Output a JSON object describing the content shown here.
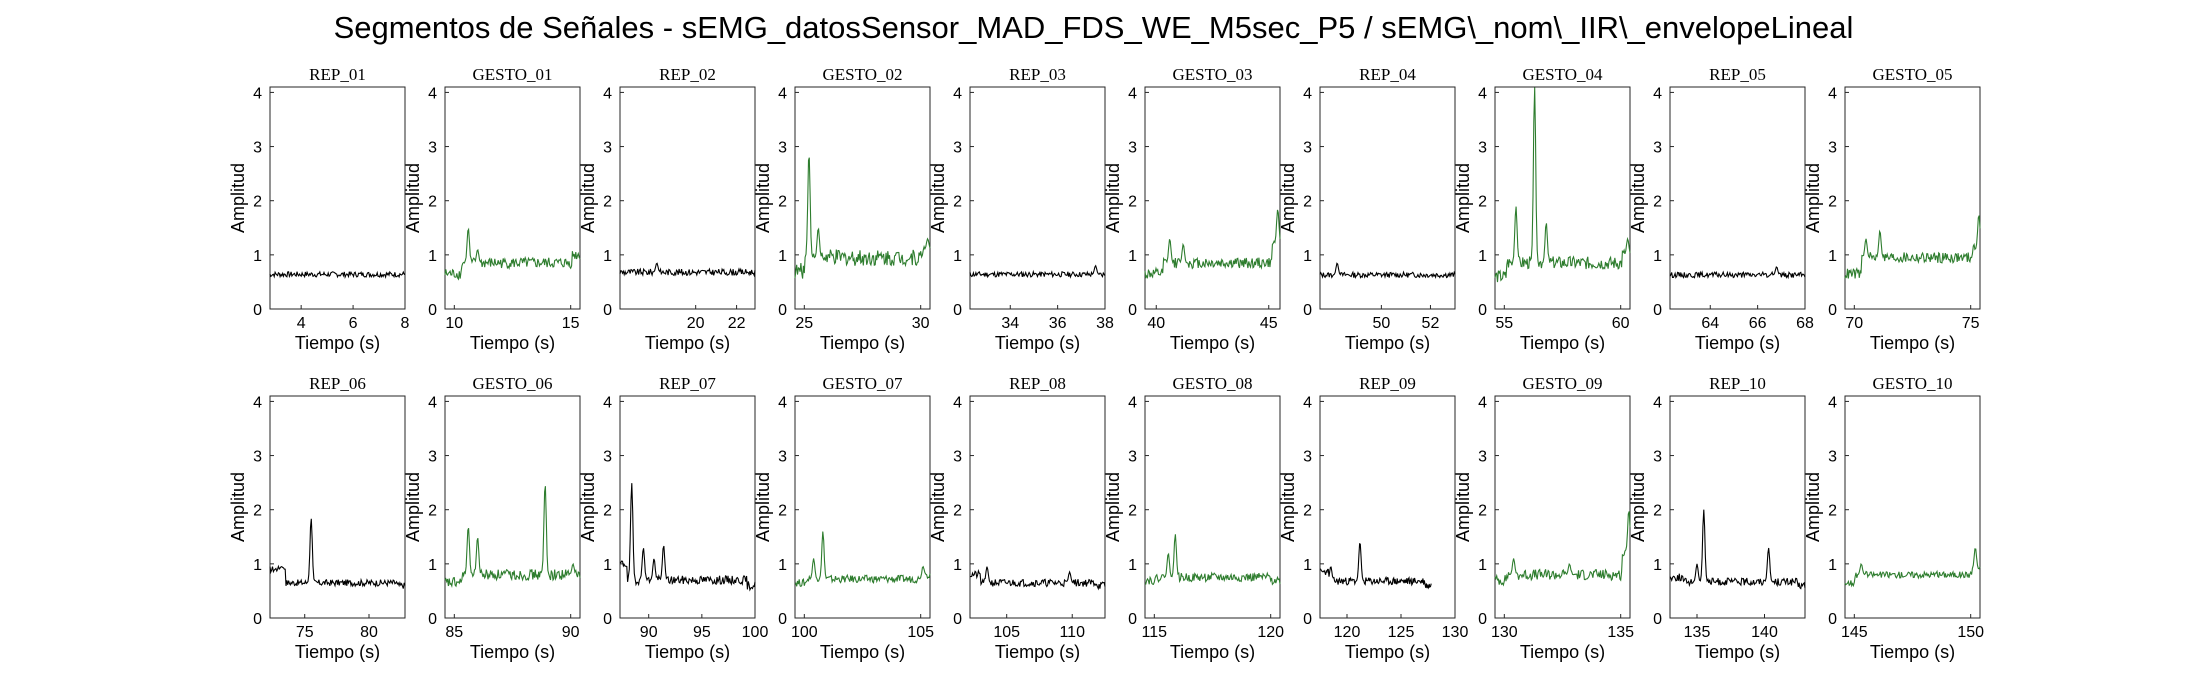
{
  "title": "Segmentos de Señales - sEMG_datosSensor_MAD_FDS_WE_M5sec_P5 / sEMG\\_nom\\_IIR\\_envelopeLineal",
  "colors": {
    "rep": "#000000",
    "gesto": "#2e7d2e",
    "axis": "#262626"
  },
  "chart_data": [
    {
      "type": "line",
      "title": "REP_01",
      "kind": "rep",
      "xlim": [
        2.8,
        8
      ],
      "ylim": [
        0,
        4.1
      ],
      "xticks": [
        4,
        6,
        8
      ],
      "yticks": [
        0,
        1,
        2,
        3,
        4
      ],
      "xlabel": "Tiempo (s)",
      "ylabel": "Amplitud",
      "baseline": 0.64,
      "noise": 0.05,
      "spikes": []
    },
    {
      "type": "line",
      "title": "GESTO_01",
      "kind": "gesto",
      "xlim": [
        9.6,
        15.4
      ],
      "ylim": [
        0,
        4.1
      ],
      "xticks": [
        10,
        15
      ],
      "yticks": [
        0,
        1,
        2,
        3,
        4
      ],
      "xlabel": "Tiempo (s)",
      "ylabel": "Amplitud",
      "baseline": 0.85,
      "noise": 0.1,
      "spikes": [
        [
          10.6,
          1.5
        ],
        [
          11.0,
          1.1
        ]
      ],
      "start_level": 0.65,
      "onset": 10.3,
      "end_level": 1.0
    },
    {
      "type": "line",
      "title": "REP_02",
      "kind": "rep",
      "xlim": [
        16.3,
        22.9
      ],
      "ylim": [
        0,
        4.1
      ],
      "xticks": [
        20,
        22
      ],
      "yticks": [
        0,
        1,
        2,
        3,
        4
      ],
      "xlabel": "Tiempo (s)",
      "ylabel": "Amplitud",
      "baseline": 0.68,
      "noise": 0.06,
      "spikes": [
        [
          18.1,
          0.85
        ]
      ]
    },
    {
      "type": "line",
      "title": "GESTO_02",
      "kind": "gesto",
      "xlim": [
        24.6,
        30.4
      ],
      "ylim": [
        0,
        4.1
      ],
      "xticks": [
        25,
        30
      ],
      "yticks": [
        0,
        1,
        2,
        3,
        4
      ],
      "xlabel": "Tiempo (s)",
      "ylabel": "Amplitud",
      "baseline": 0.95,
      "noise": 0.15,
      "spikes": [
        [
          25.2,
          2.9
        ],
        [
          25.6,
          1.5
        ],
        [
          30.3,
          1.3
        ]
      ],
      "start_level": 0.7,
      "onset": 25.0,
      "end_level": 1.1
    },
    {
      "type": "line",
      "title": "REP_03",
      "kind": "rep",
      "xlim": [
        32.3,
        38
      ],
      "ylim": [
        0,
        4.1
      ],
      "xticks": [
        34,
        36,
        38
      ],
      "yticks": [
        0,
        1,
        2,
        3,
        4
      ],
      "xlabel": "Tiempo (s)",
      "ylabel": "Amplitud",
      "baseline": 0.64,
      "noise": 0.05,
      "spikes": [
        [
          37.6,
          0.8
        ]
      ]
    },
    {
      "type": "line",
      "title": "GESTO_03",
      "kind": "gesto",
      "xlim": [
        39.5,
        45.5
      ],
      "ylim": [
        0,
        4.1
      ],
      "xticks": [
        40,
        45
      ],
      "yticks": [
        0,
        1,
        2,
        3,
        4
      ],
      "xlabel": "Tiempo (s)",
      "ylabel": "Amplitud",
      "baseline": 0.85,
      "noise": 0.1,
      "spikes": [
        [
          40.6,
          1.3
        ],
        [
          41.2,
          1.2
        ],
        [
          45.4,
          1.85
        ]
      ],
      "start_level": 0.65,
      "onset": 40.3,
      "end_level": 1.2
    },
    {
      "type": "line",
      "title": "REP_04",
      "kind": "rep",
      "xlim": [
        47.5,
        53
      ],
      "ylim": [
        0,
        4.1
      ],
      "xticks": [
        50,
        52
      ],
      "yticks": [
        0,
        1,
        2,
        3,
        4
      ],
      "xlabel": "Tiempo (s)",
      "ylabel": "Amplitud",
      "baseline": 0.63,
      "noise": 0.05,
      "spikes": [
        [
          48.2,
          0.85
        ]
      ]
    },
    {
      "type": "line",
      "title": "GESTO_04",
      "kind": "gesto",
      "xlim": [
        54.6,
        60.4
      ],
      "ylim": [
        0,
        4.1
      ],
      "xticks": [
        55,
        60
      ],
      "yticks": [
        0,
        1,
        2,
        3,
        4
      ],
      "xlabel": "Tiempo (s)",
      "ylabel": "Amplitud",
      "baseline": 0.85,
      "noise": 0.12,
      "spikes": [
        [
          55.5,
          1.9
        ],
        [
          56.3,
          4.1
        ],
        [
          56.8,
          1.6
        ],
        [
          60.3,
          1.3
        ]
      ],
      "start_level": 0.6,
      "onset": 55.1,
      "end_level": 1.0
    },
    {
      "type": "line",
      "title": "REP_05",
      "kind": "rep",
      "xlim": [
        62.3,
        68
      ],
      "ylim": [
        0,
        4.1
      ],
      "xticks": [
        64,
        66,
        68
      ],
      "yticks": [
        0,
        1,
        2,
        3,
        4
      ],
      "xlabel": "Tiempo (s)",
      "ylabel": "Amplitud",
      "baseline": 0.63,
      "noise": 0.05,
      "spikes": [
        [
          66.8,
          0.78
        ]
      ]
    },
    {
      "type": "line",
      "title": "GESTO_05",
      "kind": "gesto",
      "xlim": [
        69.6,
        75.4
      ],
      "ylim": [
        0,
        4.1
      ],
      "xticks": [
        70,
        75
      ],
      "yticks": [
        0,
        1,
        2,
        3,
        4
      ],
      "xlabel": "Tiempo (s)",
      "ylabel": "Amplitud",
      "baseline": 0.95,
      "noise": 0.1,
      "spikes": [
        [
          70.5,
          1.3
        ],
        [
          71.1,
          1.45
        ],
        [
          75.35,
          1.75
        ]
      ],
      "start_level": 0.65,
      "onset": 70.3,
      "end_level": 1.1
    },
    {
      "type": "line",
      "title": "REP_06",
      "kind": "rep",
      "xlim": [
        72.3,
        82.8
      ],
      "ylim": [
        0,
        4.1
      ],
      "xticks": [
        75,
        80
      ],
      "yticks": [
        0,
        1,
        2,
        3,
        4
      ],
      "xlabel": "Tiempo (s)",
      "ylabel": "Amplitud",
      "baseline": 0.65,
      "noise": 0.06,
      "spikes": [
        [
          75.5,
          1.85
        ],
        [
          73.2,
          0.95
        ]
      ],
      "start_level": 0.9,
      "onset": 73.5,
      "end_level": 0.6
    },
    {
      "type": "line",
      "title": "GESTO_06",
      "kind": "gesto",
      "xlim": [
        84.6,
        90.4
      ],
      "ylim": [
        0,
        4.1
      ],
      "xticks": [
        85,
        90
      ],
      "yticks": [
        0,
        1,
        2,
        3,
        4
      ],
      "xlabel": "Tiempo (s)",
      "ylabel": "Amplitud",
      "baseline": 0.8,
      "noise": 0.1,
      "spikes": [
        [
          85.6,
          1.7
        ],
        [
          86.0,
          1.5
        ],
        [
          88.9,
          2.5
        ],
        [
          90.1,
          1.0
        ]
      ],
      "start_level": 0.65,
      "onset": 85.3,
      "end_level": 0.8
    },
    {
      "type": "line",
      "title": "REP_07",
      "kind": "rep",
      "xlim": [
        87.3,
        100
      ],
      "ylim": [
        0,
        4.1
      ],
      "xticks": [
        90,
        95,
        100
      ],
      "yticks": [
        0,
        1,
        2,
        3,
        4
      ],
      "xlabel": "Tiempo (s)",
      "ylabel": "Amplitud",
      "baseline": 0.7,
      "noise": 0.08,
      "spikes": [
        [
          88.4,
          2.5
        ],
        [
          89.5,
          1.3
        ],
        [
          91.4,
          1.35
        ],
        [
          90.5,
          1.1
        ]
      ],
      "start_level": 1.0,
      "onset": 88.0,
      "end_level": 0.6
    },
    {
      "type": "line",
      "title": "GESTO_07",
      "kind": "gesto",
      "xlim": [
        99.6,
        105.4
      ],
      "ylim": [
        0,
        4.1
      ],
      "xticks": [
        100,
        105
      ],
      "yticks": [
        0,
        1,
        2,
        3,
        4
      ],
      "xlabel": "Tiempo (s)",
      "ylabel": "Amplitud",
      "baseline": 0.72,
      "noise": 0.07,
      "spikes": [
        [
          100.8,
          1.6
        ],
        [
          100.4,
          1.1
        ],
        [
          105.1,
          0.95
        ]
      ],
      "start_level": 0.65,
      "onset": 100.1,
      "end_level": 0.8
    },
    {
      "type": "line",
      "title": "REP_08",
      "kind": "rep",
      "xlim": [
        102.2,
        112.5
      ],
      "ylim": [
        0,
        4.1
      ],
      "xticks": [
        105,
        110
      ],
      "yticks": [
        0,
        1,
        2,
        3,
        4
      ],
      "xlabel": "Tiempo (s)",
      "ylabel": "Amplitud",
      "baseline": 0.65,
      "noise": 0.07,
      "spikes": [
        [
          103.5,
          0.95
        ],
        [
          109.8,
          0.85
        ]
      ],
      "start_level": 0.8,
      "onset": 103.0,
      "end_level": 0.6
    },
    {
      "type": "line",
      "title": "GESTO_08",
      "kind": "gesto",
      "xlim": [
        114.6,
        120.4
      ],
      "ylim": [
        0,
        4.1
      ],
      "xticks": [
        115,
        120
      ],
      "yticks": [
        0,
        1,
        2,
        3,
        4
      ],
      "xlabel": "Tiempo (s)",
      "ylabel": "Amplitud",
      "baseline": 0.75,
      "noise": 0.08,
      "spikes": [
        [
          115.9,
          1.55
        ],
        [
          115.6,
          1.2
        ]
      ],
      "start_level": 0.7,
      "onset": 115.1,
      "end_level": 0.7
    },
    {
      "type": "line",
      "title": "REP_09",
      "kind": "rep",
      "xlim": [
        117.5,
        130
      ],
      "ylim": [
        0,
        4.1
      ],
      "xticks": [
        120,
        125,
        130
      ],
      "yticks": [
        0,
        1,
        2,
        3,
        4
      ],
      "xlabel": "Tiempo (s)",
      "ylabel": "Amplitud",
      "baseline": 0.68,
      "noise": 0.07,
      "spikes": [
        [
          121.2,
          1.4
        ],
        [
          118.5,
          0.95
        ]
      ],
      "start_level": 0.85,
      "onset": 118.3,
      "end_level": 0.6,
      "data_end": 127.8
    },
    {
      "type": "line",
      "title": "GESTO_09",
      "kind": "gesto",
      "xlim": [
        129.6,
        135.4
      ],
      "ylim": [
        0,
        4.1
      ],
      "xticks": [
        130,
        135
      ],
      "yticks": [
        0,
        1,
        2,
        3,
        4
      ],
      "xlabel": "Tiempo (s)",
      "ylabel": "Amplitud",
      "baseline": 0.8,
      "noise": 0.1,
      "spikes": [
        [
          130.4,
          1.1
        ],
        [
          132.8,
          1.0
        ],
        [
          135.35,
          2.0
        ]
      ],
      "start_level": 0.7,
      "onset": 130.1,
      "end_level": 1.2
    },
    {
      "type": "line",
      "title": "REP_10",
      "kind": "rep",
      "xlim": [
        133,
        143
      ],
      "ylim": [
        0,
        4.1
      ],
      "xticks": [
        135,
        140
      ],
      "yticks": [
        0,
        1,
        2,
        3,
        4
      ],
      "xlabel": "Tiempo (s)",
      "ylabel": "Amplitud",
      "baseline": 0.67,
      "noise": 0.07,
      "spikes": [
        [
          135.5,
          2.0
        ],
        [
          140.3,
          1.3
        ],
        [
          135.0,
          1.0
        ]
      ],
      "start_level": 0.75,
      "onset": 134.0,
      "end_level": 0.6
    },
    {
      "type": "line",
      "title": "GESTO_10",
      "kind": "gesto",
      "xlim": [
        144.6,
        150.4
      ],
      "ylim": [
        0,
        4.1
      ],
      "xticks": [
        145,
        150
      ],
      "yticks": [
        0,
        1,
        2,
        3,
        4
      ],
      "xlabel": "Tiempo (s)",
      "ylabel": "Amplitud",
      "baseline": 0.8,
      "noise": 0.06,
      "spikes": [
        [
          145.3,
          1.0
        ],
        [
          150.2,
          1.3
        ]
      ],
      "start_level": 0.65,
      "onset": 145.0,
      "end_level": 0.9
    }
  ]
}
